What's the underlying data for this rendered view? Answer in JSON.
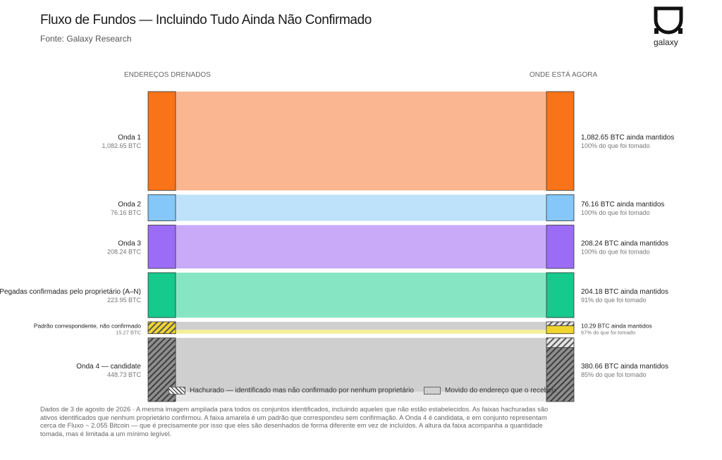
{
  "header": {
    "title": "Fluxo de Fundos — Incluindo Tudo Ainda Não Confirmado",
    "subtitle": "Fonte: Galaxy Research",
    "logo_text": "galaxy"
  },
  "columns": {
    "left": "ENDEREÇOS DRENADOS",
    "right": "ONDE ESTÁ AGORA"
  },
  "legend": {
    "hatched": "Hachurado — identificado mas não confirmado por nenhum proprietário",
    "moved": "Movido do endereço que o recebeu"
  },
  "footnote": "Dados de 3 de agosto de 2026 · A mesma imagem ampliada para todos os conjuntos identificados, incluindo aqueles que não estão estabelecidos. As faixas hachuradas são ativos identificados que nenhum proprietário confirmou. A faixa amarela é um padrão que correspondeu sem confirmação. A Onda 4 é candidata, e em conjunto representam cerca de Fluxo ~ 2.055 Bitcoin — que é precisamente por isso que eles são desenhados de forma diferente em vez de incluídos. A altura da faixa acompanha a quantidade tomada, mas é limitada a um mínimo legível.",
  "colors": {
    "onda1": "#f97318",
    "onda1_band": "#f9b690",
    "onda2": "#84c7f8",
    "onda2_band": "#bfe2fb",
    "onda3": "#9b6cf5",
    "onda3_band": "#c9aaf9",
    "pegadas": "#16c98c",
    "pegadas_band": "#86e6c3",
    "padrao": "#f1d52f",
    "padrao_band": "#f4ee98",
    "moved": "#cfcfcf"
  },
  "chart_data": {
    "type": "sankey",
    "title": "Fluxo de Fundos — Incluindo Tudo Ainda Não Confirmado",
    "flows": [
      {
        "name": "Onda 1",
        "taken_label": "1,082.65 BTC",
        "taken": 1082.65,
        "kept": 1082.65,
        "kept_label": "1,082.65 BTC ainda mantidos",
        "pct_label": "100% do que foi tomado",
        "confirmed": true,
        "color_key": "onda1"
      },
      {
        "name": "Onda 2",
        "taken_label": "76.16 BTC",
        "taken": 76.16,
        "kept": 76.16,
        "kept_label": "76.16 BTC ainda mantidos",
        "pct_label": "100% do que foi tomado",
        "confirmed": true,
        "color_key": "onda2"
      },
      {
        "name": "Onda 3",
        "taken_label": "208.24 BTC",
        "taken": 208.24,
        "kept": 208.24,
        "kept_label": "208.24 BTC ainda mantidos",
        "pct_label": "100% do que foi tomado",
        "confirmed": true,
        "color_key": "onda3"
      },
      {
        "name": "Pegadas confirmadas pelo proprietário (A–N)",
        "taken_label": "223.95 BTC",
        "taken": 223.95,
        "kept": 204.18,
        "kept_label": "204.18 BTC ainda mantidos",
        "pct_label": "91% do que foi tomado",
        "confirmed": true,
        "color_key": "pegadas"
      },
      {
        "name": "Padrão correspondente, não confirmado",
        "taken_label": "15.27 BTC",
        "taken": 15.27,
        "kept": 10.29,
        "kept_label": "10.29 BTC ainda mantidos",
        "pct_label": "67% do que foi tomado",
        "confirmed": false,
        "color_key": "padrao"
      },
      {
        "name": "Onda 4 — candidate",
        "taken_label": "448.73 BTC",
        "taken": 448.73,
        "kept": 380.66,
        "kept_label": "380.66 BTC ainda mantidos",
        "pct_label": "85% do que foi tomado",
        "confirmed": false,
        "color_key": "moved"
      }
    ]
  }
}
